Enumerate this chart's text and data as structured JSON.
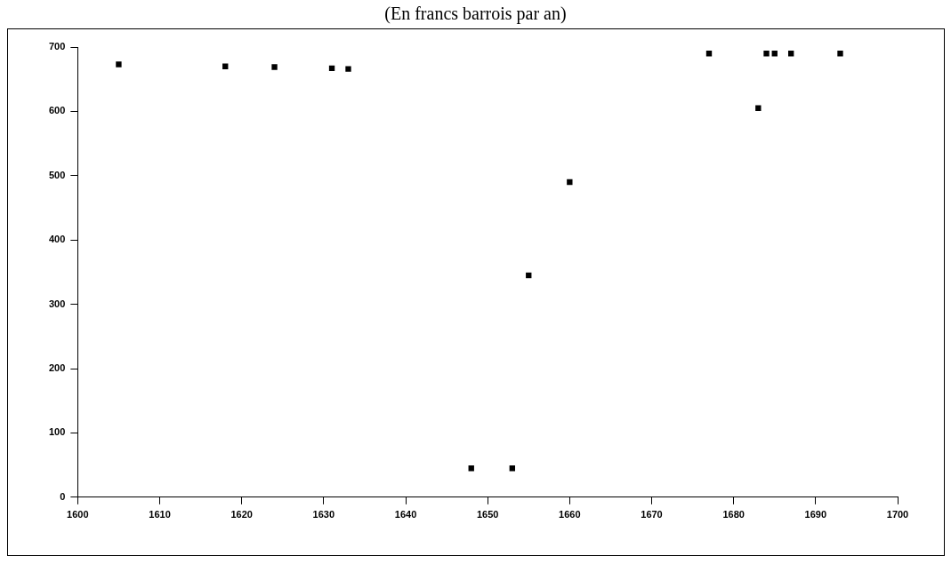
{
  "chart_data": {
    "type": "scatter",
    "title": "(En francs barrois par an)",
    "series": [
      {
        "color": "#000000",
        "x": [
          1605,
          1618,
          1624,
          1631,
          1633,
          1648,
          1653,
          1655,
          1660,
          1677,
          1683,
          1684,
          1685,
          1687,
          1693
        ],
        "values": [
          673,
          670,
          669,
          667,
          666,
          45,
          45,
          345,
          490,
          690,
          605,
          690,
          690,
          690,
          690
        ]
      }
    ],
    "xlim": [
      1600,
      1700
    ],
    "xticks": [
      1600,
      1610,
      1620,
      1630,
      1640,
      1650,
      1660,
      1670,
      1680,
      1690,
      1700
    ],
    "ylim": [
      0,
      700
    ],
    "yticks": [
      0,
      100,
      200,
      300,
      400,
      500,
      600,
      700
    ],
    "grid": false,
    "legend": false,
    "marker": "square"
  }
}
